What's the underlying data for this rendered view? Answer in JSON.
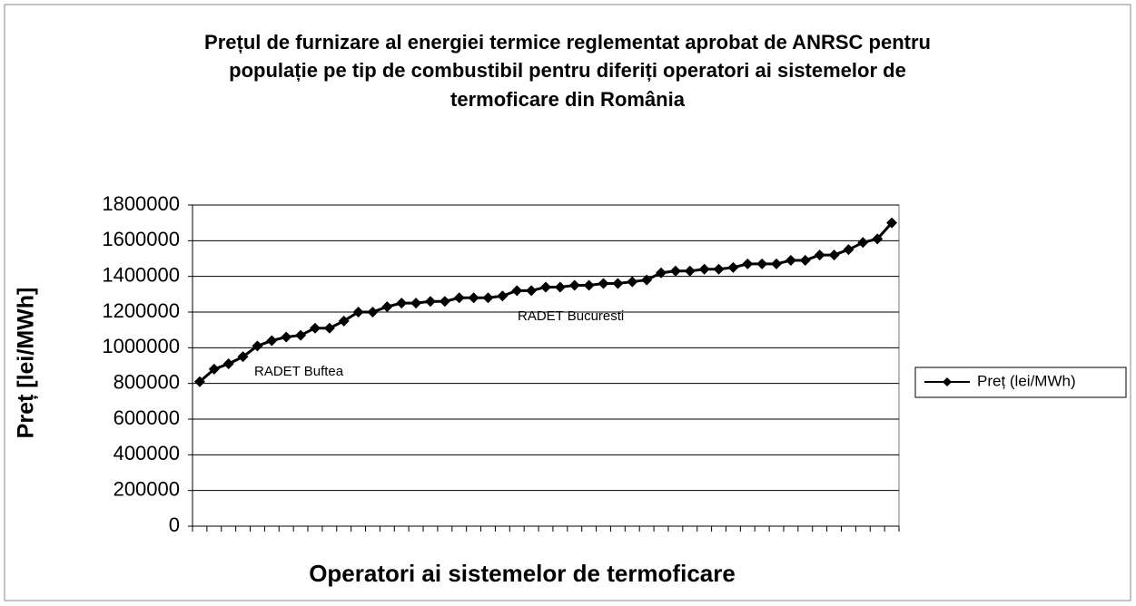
{
  "chart_data": {
    "type": "line",
    "title": [
      "Prețul de furnizare al energiei termice reglementat aprobat de ANRSC pentru",
      "populație pe tip de combustibil pentru diferiți operatori ai sistemelor de",
      "termoficare din România"
    ],
    "x_label": "Operatori ai sistemelor de termoficare",
    "y_label": "Preț [lei/MWh]",
    "annotations": [
      "RADET Buftea",
      "RADET Bucuresti"
    ],
    "categories": [
      null,
      null,
      null,
      null,
      null,
      null,
      null,
      null,
      null,
      null,
      null,
      null,
      null,
      null,
      null,
      null,
      null,
      null,
      null,
      null,
      null,
      null,
      null,
      null,
      null,
      null,
      null,
      null,
      null,
      null,
      null,
      null,
      null,
      null,
      null,
      null,
      null,
      null,
      null,
      null,
      null,
      null,
      null,
      null,
      null,
      null,
      null,
      null,
      null
    ],
    "series": [
      {
        "name": "Preț (lei/MWh)",
        "color": "#000000",
        "values": [
          810000,
          880000,
          910000,
          950000,
          1010000,
          1040000,
          1060000,
          1070000,
          1110000,
          1110000,
          1150000,
          1200000,
          1200000,
          1230000,
          1250000,
          1250000,
          1260000,
          1260000,
          1280000,
          1280000,
          1280000,
          1290000,
          1320000,
          1320000,
          1340000,
          1340000,
          1350000,
          1350000,
          1360000,
          1360000,
          1370000,
          1380000,
          1420000,
          1430000,
          1430000,
          1440000,
          1440000,
          1450000,
          1470000,
          1470000,
          1470000,
          1490000,
          1490000,
          1520000,
          1520000,
          1550000,
          1590000,
          1610000,
          1700000
        ]
      }
    ],
    "ylim": [
      0,
      1800000
    ],
    "yticks": [
      0,
      200000,
      400000,
      600000,
      800000,
      1000000,
      1200000,
      1400000,
      1600000,
      1800000
    ],
    "grid": true,
    "legend": "right"
  }
}
